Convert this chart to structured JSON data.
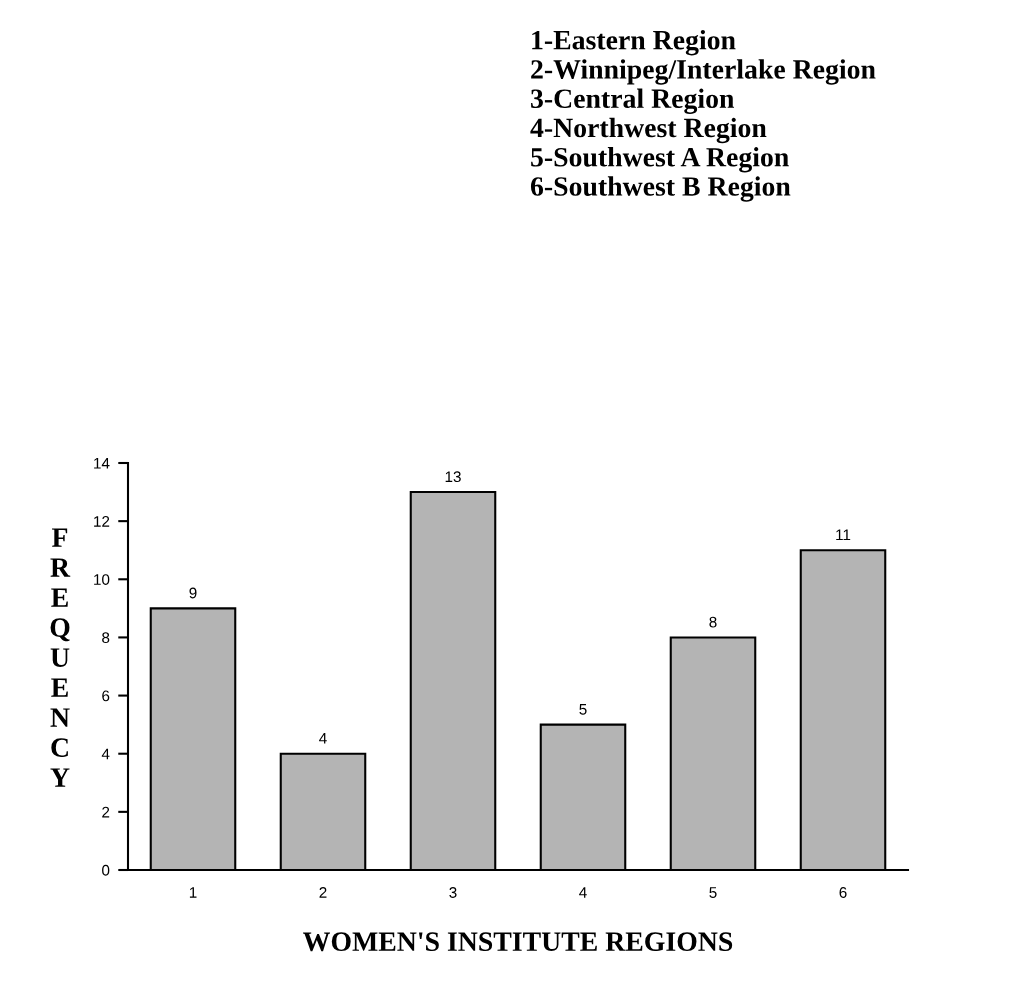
{
  "chart_data": {
    "type": "bar",
    "categories": [
      "1",
      "2",
      "3",
      "4",
      "5",
      "6"
    ],
    "values": [
      9,
      4,
      13,
      5,
      8,
      11
    ],
    "color": "#b4b4b4",
    "ylim": [
      0,
      14
    ],
    "yticks": [
      0,
      2,
      4,
      6,
      8,
      10,
      12,
      14
    ],
    "xlabel": "WOMEN'S INSTITUTE REGIONS",
    "ylabel": "FREQUENCY",
    "annotations": [
      "1-Eastern Region",
      "2-Winnipeg/Interlake Region",
      "3-Central Region",
      "4-Northwest Region",
      "5-Southwest A Region",
      "6-Southwest B Region"
    ],
    "data_labels": true,
    "grid": false,
    "legend": false
  }
}
